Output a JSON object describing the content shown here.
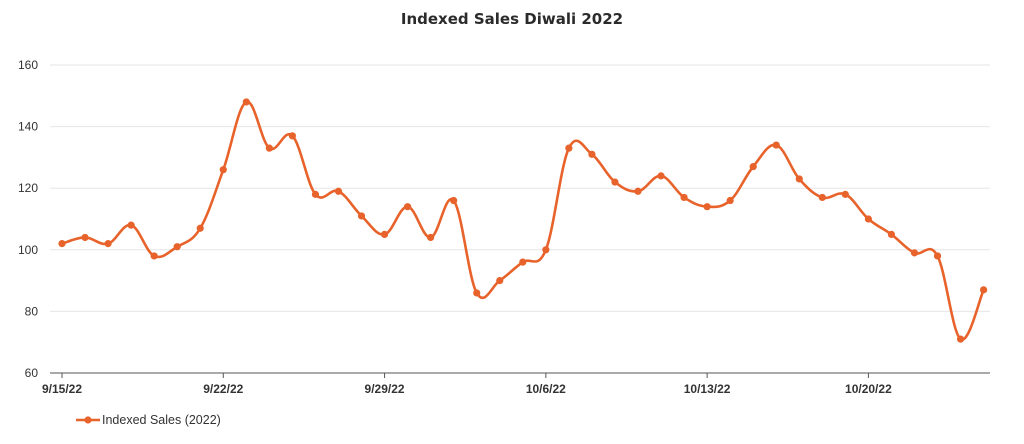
{
  "chart_data": {
    "type": "line",
    "title": "Indexed Sales Diwali 2022",
    "xlabel": "",
    "ylabel": "",
    "ylim": [
      60,
      160
    ],
    "y_ticks": [
      "60",
      "80",
      "100",
      "120",
      "140",
      "160"
    ],
    "x_tick_labels": [
      "9/15/22",
      "9/22/22",
      "9/29/22",
      "10/6/22",
      "10/13/22",
      "10/20/22"
    ],
    "x": [
      "9/15/22",
      "9/16/22",
      "9/17/22",
      "9/18/22",
      "9/19/22",
      "9/20/22",
      "9/21/22",
      "9/22/22",
      "9/23/22",
      "9/24/22",
      "9/25/22",
      "9/26/22",
      "9/27/22",
      "9/28/22",
      "9/29/22",
      "9/30/22",
      "10/1/22",
      "10/2/22",
      "10/3/22",
      "10/4/22",
      "10/5/22",
      "10/6/22",
      "10/7/22",
      "10/8/22",
      "10/9/22",
      "10/10/22",
      "10/11/22",
      "10/12/22",
      "10/13/22",
      "10/14/22",
      "10/15/22",
      "10/16/22",
      "10/17/22",
      "10/18/22",
      "10/19/22",
      "10/20/22",
      "10/21/22",
      "10/22/22",
      "10/23/22",
      "10/24/22",
      "10/25/22"
    ],
    "series": [
      {
        "name": "Indexed Sales (2022)",
        "color": "#e8632b",
        "values": [
          102,
          104,
          102,
          108,
          98,
          101,
          107,
          126,
          148,
          133,
          137,
          118,
          119,
          111,
          105,
          114,
          104,
          116,
          86,
          90,
          96,
          100,
          133,
          131,
          122,
          119,
          124,
          117,
          114,
          116,
          127,
          134,
          123,
          117,
          118,
          110,
          105,
          99,
          98,
          71,
          87
        ]
      }
    ],
    "grid": "horizontal",
    "legend_position": "bottom-left"
  }
}
